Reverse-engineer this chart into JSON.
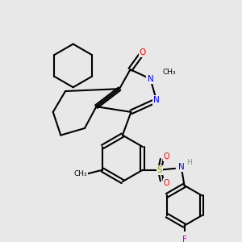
{
  "bg_color": "#e8e8e8",
  "bond_color": "#000000",
  "bond_lw": 1.5,
  "atom_colors": {
    "O": "#ff0000",
    "N": "#0000ff",
    "F": "#cc00cc",
    "S": "#999900",
    "H": "#7a9a7a",
    "C": "#000000"
  },
  "font_size": 7.5,
  "font_size_small": 6.5
}
